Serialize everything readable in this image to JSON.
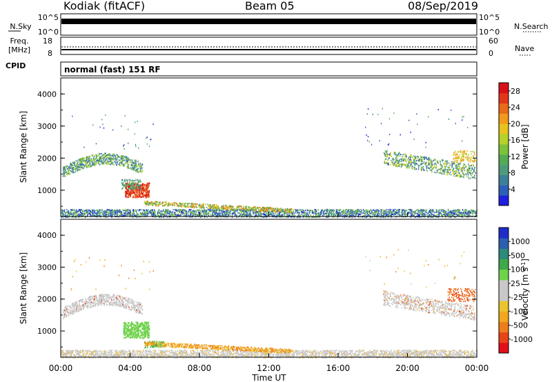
{
  "header": {
    "station": "Kodiak (fitACF)",
    "beam": "Beam 05",
    "date": "08/Sep/2019"
  },
  "top_panels": {
    "nsky_label": "N.Sky",
    "nsearch_label": "N.Search",
    "nsky_ticks": [
      "10^5",
      "10^0"
    ],
    "nsearch_ticks": [
      "10^5",
      "10^0"
    ],
    "freq_label_1": "Freq.",
    "freq_label_2": "[MHz]",
    "freq_ticks": [
      "18",
      "8"
    ],
    "nave_label": "Nave",
    "nave_ticks": [
      "60",
      "0"
    ],
    "cpid_label": "CPID",
    "cpid_text": "normal (fast) 151 RF"
  },
  "colors": {
    "power_scale": [
      "#1f1fe0",
      "#2e5fb8",
      "#3d7f9a",
      "#4f9a7c",
      "#55aa55",
      "#7cc23a",
      "#b5d12a",
      "#e8c21e",
      "#f29a1c",
      "#ea6a18",
      "#e2361a",
      "#d8101a"
    ],
    "velocity_scale": [
      "#e0101a",
      "#e84418",
      "#ef7d1c",
      "#f2a81e",
      "#e9c42e",
      "#c8c8c8",
      "#c8c8c8",
      "#6ed24a",
      "#3fa84a",
      "#2e8a7a",
      "#2d5fb0",
      "#1f2ec8"
    ]
  },
  "chart_data": [
    {
      "type": "heatmap",
      "name": "power",
      "xlabel": "",
      "ylabel": "Slant Range [km]",
      "ylim": [
        180,
        4500
      ],
      "yticks": [
        "1000",
        "2000",
        "3000",
        "4000"
      ],
      "xlim": [
        0,
        24
      ],
      "colorbar_label": "Power [dB]",
      "colorbar_ticks": [
        "4",
        "8",
        "12",
        "16",
        "20",
        "24",
        "28"
      ],
      "colorbar_range": [
        0,
        30
      ],
      "features": [
        {
          "region": "arc-evening",
          "t": [
            0.0,
            4.6
          ],
          "range_km": [
            1400,
            2200
          ],
          "power_db": [
            6,
            16
          ]
        },
        {
          "region": "blob",
          "t": [
            3.6,
            5.2
          ],
          "range_km": [
            800,
            1300
          ],
          "power_db": [
            20,
            30
          ]
        },
        {
          "region": "descending-band",
          "t": [
            4.8,
            13.0
          ],
          "range_km": [
            350,
            650
          ],
          "power_db": [
            8,
            24
          ]
        },
        {
          "region": "ground-band",
          "t": [
            0.0,
            24.0
          ],
          "range_km": [
            180,
            450
          ],
          "power_db": [
            2,
            14
          ]
        },
        {
          "region": "arc-morning",
          "t": [
            18.5,
            24.0
          ],
          "range_km": [
            1300,
            2300
          ],
          "power_db": [
            6,
            18
          ]
        }
      ]
    },
    {
      "type": "heatmap",
      "name": "velocity",
      "xlabel": "Time UT",
      "ylabel": "Slant Range [km]",
      "ylim": [
        180,
        4500
      ],
      "yticks": [
        "1000",
        "2000",
        "3000",
        "4000"
      ],
      "xlim": [
        0,
        24
      ],
      "xticks": [
        "00:00",
        "04:00",
        "08:00",
        "12:00",
        "16:00",
        "20:00",
        "00:00"
      ],
      "colorbar_label": "Velocity [m s^-1]",
      "colorbar_ticks": [
        "1000",
        "500",
        "100",
        "25",
        "-25",
        "-100",
        "-500",
        "-1000"
      ],
      "features": [
        {
          "region": "arc-evening",
          "t": [
            0.0,
            4.6
          ],
          "range_km": [
            1400,
            2200
          ],
          "velocity": "near zero (grey)"
        },
        {
          "region": "blob",
          "t": [
            3.6,
            5.2
          ],
          "range_km": [
            800,
            1300
          ],
          "velocity": "100 (green)"
        },
        {
          "region": "descending-band",
          "t": [
            4.8,
            13.0
          ],
          "range_km": [
            350,
            650
          ],
          "velocity": "-100 (orange/yellow)"
        },
        {
          "region": "ground-band",
          "t": [
            0.0,
            24.0
          ],
          "range_km": [
            180,
            450
          ],
          "velocity": "near zero (grey)"
        },
        {
          "region": "arc-morning",
          "t": [
            18.5,
            24.0
          ],
          "range_km": [
            1300,
            2300
          ],
          "velocity": "-100 to -500 (orange)"
        }
      ]
    }
  ]
}
